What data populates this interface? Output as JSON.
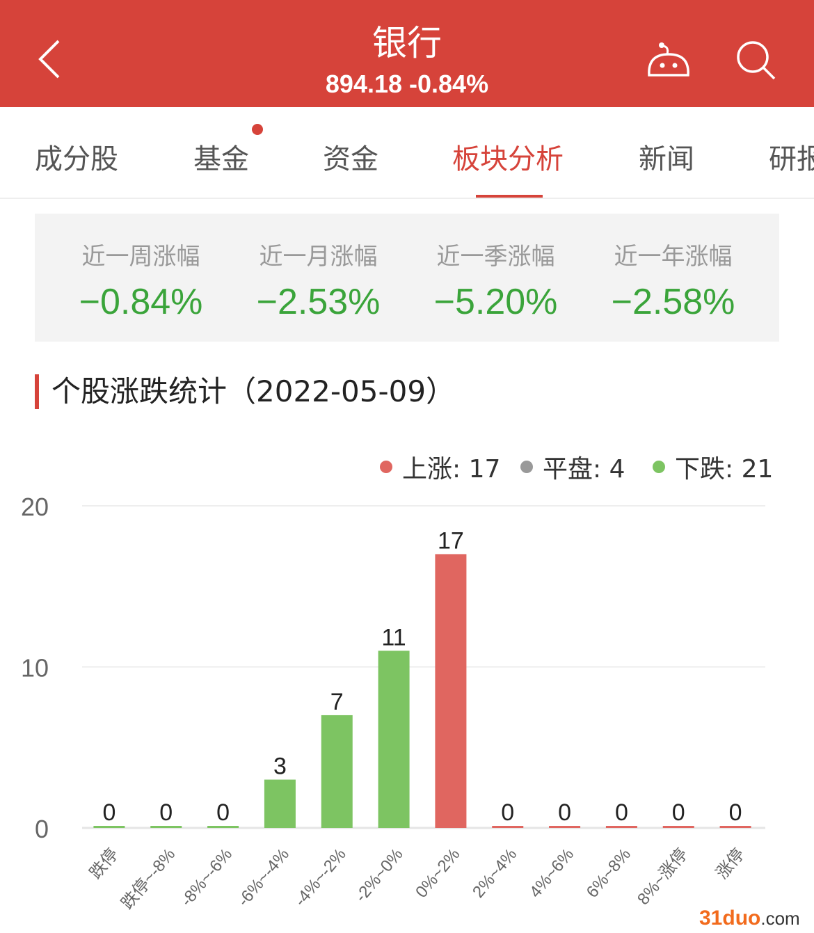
{
  "header": {
    "title": "银行",
    "subtitle": "894.18 -0.84%"
  },
  "tabs": [
    "成分股",
    "基金",
    "资金",
    "板块分析",
    "新闻",
    "研报"
  ],
  "active_tab": "板块分析",
  "stats": [
    {
      "label": "近一周涨幅",
      "value": "−0.84%"
    },
    {
      "label": "近一月涨幅",
      "value": "−2.53%"
    },
    {
      "label": "近一季涨幅",
      "value": "−5.20%"
    },
    {
      "label": "近一年涨幅",
      "value": "−2.58%"
    }
  ],
  "section_title": "个股涨跌统计（2022-05-09）",
  "legend": [
    {
      "label": "上涨: 17",
      "color": "#e06660"
    },
    {
      "label": "平盘: 4",
      "color": "#999999"
    },
    {
      "label": "下跌: 21",
      "color": "#7dc462"
    }
  ],
  "chart_data": {
    "type": "bar",
    "categories": [
      "跌停",
      "跌停~-8%",
      "-8%~-6%",
      "-6%~-4%",
      "-4%~-2%",
      "-2%~0%",
      "0%~2%",
      "2%~4%",
      "4%~6%",
      "6%~8%",
      "8%~涨停",
      "涨停"
    ],
    "values": [
      0,
      0,
      0,
      3,
      7,
      11,
      17,
      0,
      0,
      0,
      0,
      0
    ],
    "colors": [
      "#7dc462",
      "#7dc462",
      "#7dc462",
      "#7dc462",
      "#7dc462",
      "#7dc462",
      "#e06660",
      "#e06660",
      "#e06660",
      "#e06660",
      "#e06660",
      "#e06660"
    ],
    "yticks": [
      0,
      10,
      20
    ],
    "ylim": [
      0,
      20
    ],
    "grid": true,
    "legend": "top-right"
  },
  "watermark": {
    "main": "31duo",
    ".com": ".com"
  }
}
